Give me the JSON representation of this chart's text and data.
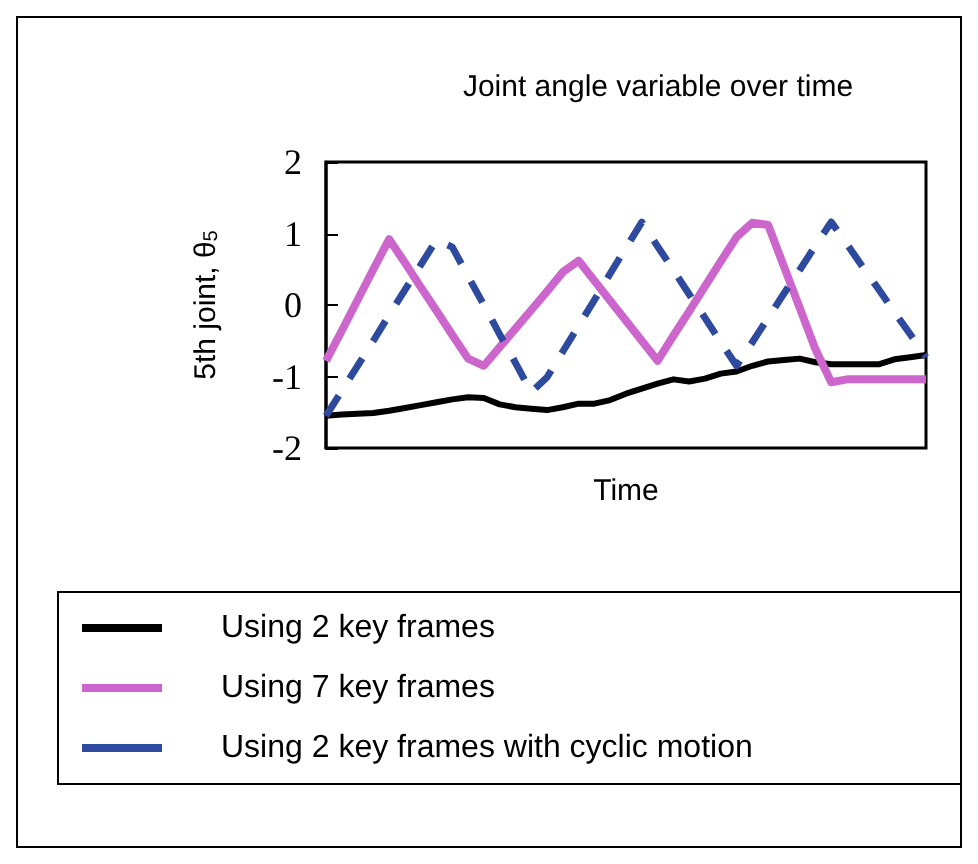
{
  "chart_data": {
    "type": "line",
    "title": "Joint angle variable over time",
    "xlabel": "Time",
    "ylabel": "5th joint, θ$_{5}$",
    "categories": [
      null,
      null,
      null,
      null,
      null,
      null,
      null,
      null,
      null,
      null,
      null,
      null,
      null,
      null,
      null,
      null,
      null,
      null,
      null,
      null,
      null,
      null,
      null,
      null,
      null,
      null,
      null,
      null,
      null,
      null,
      null,
      null,
      null,
      null,
      null,
      null,
      null,
      null,
      null
    ],
    "series": [
      {
        "name": "Using 2 key frames",
        "color": "#000000",
        "line_style": "solid",
        "values": [
          -1.55,
          -1.53,
          -1.52,
          -1.51,
          -1.48,
          -1.44,
          -1.4,
          -1.36,
          -1.32,
          -1.29,
          -1.3,
          -1.39,
          -1.43,
          -1.45,
          -1.47,
          -1.43,
          -1.38,
          -1.38,
          -1.33,
          -1.24,
          -1.17,
          -1.1,
          -1.04,
          -1.07,
          -1.03,
          -0.96,
          -0.93,
          -0.85,
          -0.79,
          -0.77,
          -0.75,
          -0.8,
          -0.83,
          -0.83,
          -0.83,
          -0.83,
          -0.76,
          -0.73,
          -0.7
        ]
      },
      {
        "name": "Using 7 key frames",
        "color": "#cc66cc",
        "line_style": "solid",
        "values": [
          -0.78,
          -0.36,
          0.07,
          0.5,
          0.92,
          0.59,
          0.25,
          -0.08,
          -0.42,
          -0.75,
          -0.85,
          -0.59,
          -0.33,
          -0.07,
          0.19,
          0.46,
          0.62,
          0.34,
          0.06,
          -0.22,
          -0.5,
          -0.78,
          -0.43,
          -0.09,
          0.26,
          0.61,
          0.95,
          1.15,
          1.12,
          0.54,
          -0.04,
          -0.62,
          -1.08,
          -1.04,
          -1.04,
          -1.04,
          -1.04,
          -1.04,
          -1.04
        ]
      },
      {
        "name": "Using 2 key frames with cyclic motion",
        "color": "#2e4a9e",
        "line_style": "dashed",
        "values": [
          -1.55,
          -1.2,
          -0.85,
          -0.5,
          -0.14,
          0.21,
          0.56,
          0.91,
          0.81,
          0.4,
          0,
          -0.41,
          -0.81,
          -1.22,
          -1.01,
          -0.65,
          -0.29,
          0.07,
          0.44,
          0.8,
          1.16,
          0.82,
          0.49,
          0.15,
          -0.18,
          -0.52,
          -0.85,
          -0.52,
          -0.18,
          0.16,
          0.49,
          0.83,
          1.16,
          0.85,
          0.53,
          0.22,
          -0.1,
          -0.41,
          -0.73
        ]
      }
    ],
    "ylim": [
      -2,
      2
    ],
    "yticks": [
      -2,
      -1,
      0,
      1,
      2
    ],
    "grid": false,
    "legend": "bottom",
    "marker": "none"
  }
}
